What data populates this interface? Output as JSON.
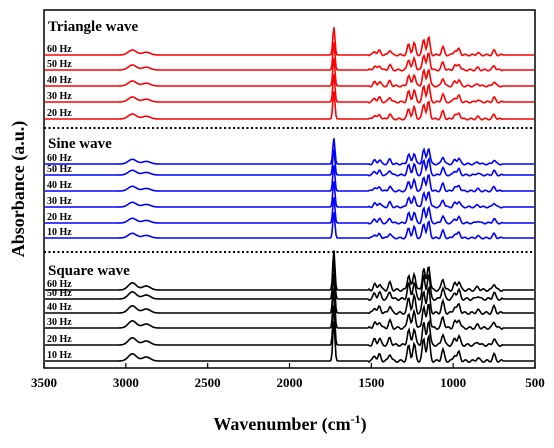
{
  "chart_data": {
    "type": "line",
    "xlabel": "Wavenumber (cm",
    "xlabel_sup": "-1",
    "xlabel_close": ")",
    "ylabel": "Absorbance (a.u.)",
    "xlim": [
      3500,
      500
    ],
    "xticks": [
      "3500",
      "3000",
      "2500",
      "2000",
      "1500",
      "1000",
      "500"
    ],
    "xtick_values": [
      3500,
      3000,
      2500,
      2000,
      1500,
      1000,
      500
    ],
    "peaks": [
      {
        "x": 2960,
        "h": 0.18
      },
      {
        "x": 2875,
        "h": 0.1
      },
      {
        "x": 1729,
        "h": 1.0
      },
      {
        "x": 1480,
        "h": 0.14
      },
      {
        "x": 1450,
        "h": 0.16
      },
      {
        "x": 1387,
        "h": 0.18
      },
      {
        "x": 1272,
        "h": 0.38
      },
      {
        "x": 1238,
        "h": 0.42
      },
      {
        "x": 1180,
        "h": 0.55
      },
      {
        "x": 1150,
        "h": 0.62
      },
      {
        "x": 1063,
        "h": 0.28
      },
      {
        "x": 990,
        "h": 0.16
      },
      {
        "x": 965,
        "h": 0.22
      },
      {
        "x": 850,
        "h": 0.08
      },
      {
        "x": 750,
        "h": 0.16
      }
    ],
    "panels": [
      {
        "title": "Triangle wave",
        "color": "#ff0000",
        "series": [
          "20 Hz",
          "30 Hz",
          "40 Hz",
          "50 Hz",
          "60 Hz"
        ]
      },
      {
        "title": "Sine wave",
        "color": "#0000ff",
        "series": [
          "10 Hz",
          "20 Hz",
          "30 Hz",
          "40 Hz",
          "50 Hz",
          "60 Hz"
        ]
      },
      {
        "title": "Square wave",
        "color": "#000000",
        "series": [
          "10 Hz",
          "20 Hz",
          "30 Hz",
          "40 Hz",
          "50 Hz",
          "60 Hz"
        ]
      }
    ]
  }
}
